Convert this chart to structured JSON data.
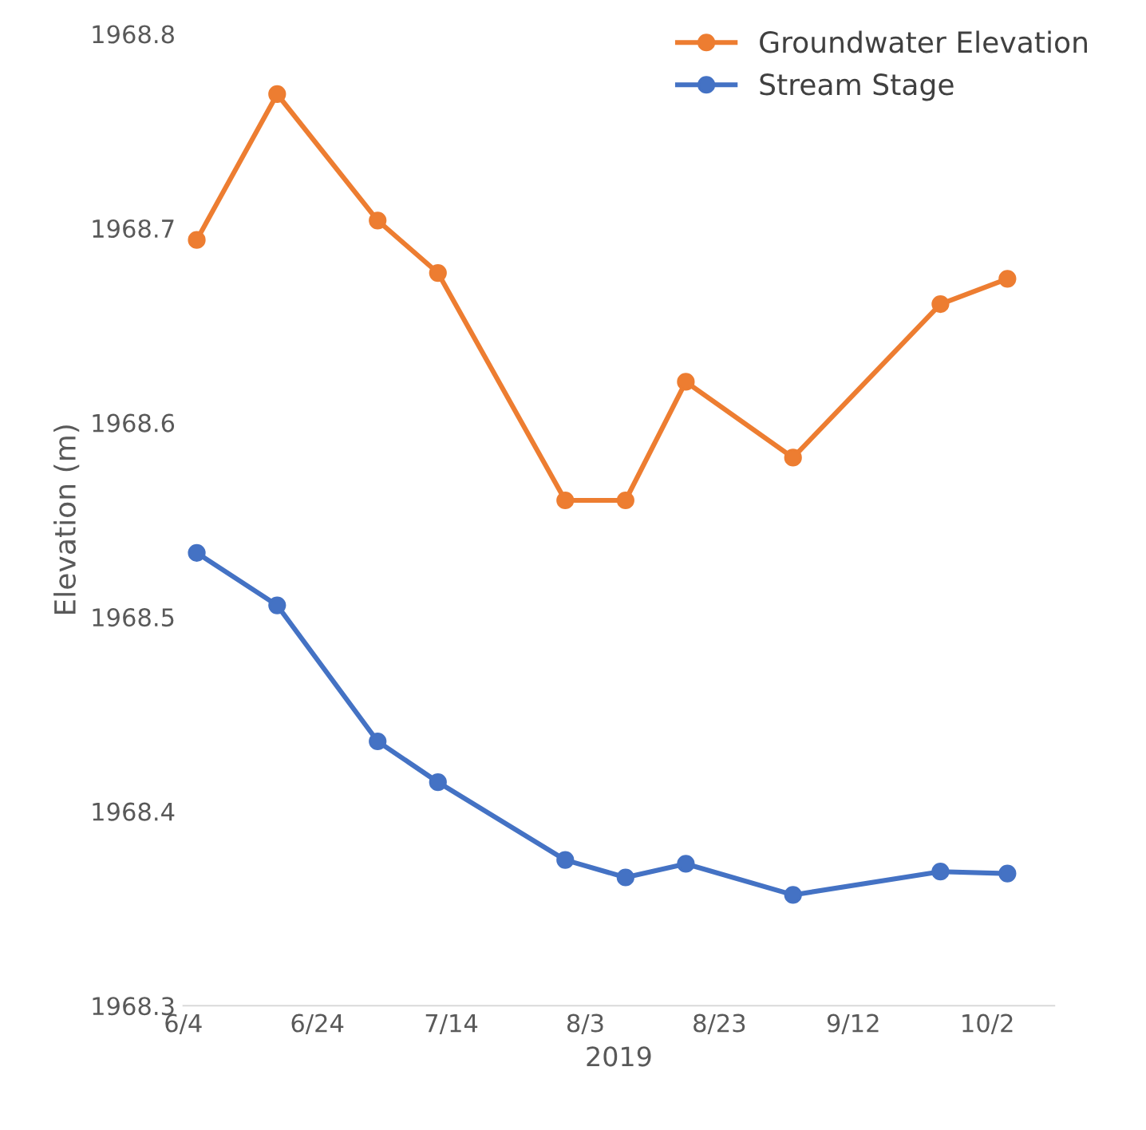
{
  "chart_data": {
    "type": "line",
    "xlabel": "2019",
    "ylabel": "Elevation (m)",
    "x": [
      "2019-06-06",
      "2019-06-18",
      "2019-07-03",
      "2019-07-12",
      "2019-07-31",
      "2019-08-09",
      "2019-08-18",
      "2019-09-03",
      "2019-09-25",
      "2019-10-05"
    ],
    "series": [
      {
        "name": "Groundwater Elevation",
        "color": "#ed7d31",
        "values": [
          1968.694,
          1968.769,
          1968.704,
          1968.677,
          1968.56,
          1968.56,
          1968.621,
          1968.582,
          1968.661,
          1968.674
        ]
      },
      {
        "name": "Stream Stage",
        "color": "#4472c4",
        "values": [
          1968.533,
          1968.506,
          1968.436,
          1968.415,
          1968.375,
          1968.366,
          1968.373,
          1968.357,
          1968.369,
          1968.368
        ]
      }
    ],
    "xlim": [
      "2019-06-04",
      "2019-10-12"
    ],
    "xticks": [
      {
        "value": "2019-06-04",
        "label": "6/4"
      },
      {
        "value": "2019-06-24",
        "label": "6/24"
      },
      {
        "value": "2019-07-14",
        "label": "7/14"
      },
      {
        "value": "2019-08-03",
        "label": "8/3"
      },
      {
        "value": "2019-08-23",
        "label": "8/23"
      },
      {
        "value": "2019-09-12",
        "label": "9/12"
      },
      {
        "value": "2019-10-02",
        "label": "10/2"
      }
    ],
    "ylim": [
      1968.3,
      1968.8
    ],
    "yticks": [
      {
        "value": 1968.3,
        "label": "1968.3"
      },
      {
        "value": 1968.4,
        "label": "1968.4"
      },
      {
        "value": 1968.5,
        "label": "1968.5"
      },
      {
        "value": 1968.6,
        "label": "1968.6"
      },
      {
        "value": 1968.7,
        "label": "1968.7"
      },
      {
        "value": 1968.8,
        "label": "1968.8"
      }
    ],
    "legend": "top right",
    "marker": "circle",
    "line_style": "solid",
    "grid": false
  }
}
